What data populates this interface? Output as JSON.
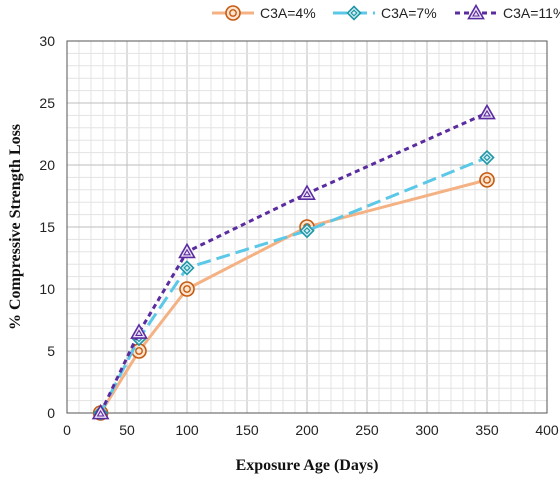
{
  "chart_data": {
    "type": "line",
    "title": "",
    "xlabel": "Exposure Age (Days)",
    "ylabel": "% Compressive Strength Loss",
    "xlim": [
      0,
      400
    ],
    "ylim": [
      0,
      30
    ],
    "x_ticks": [
      "0",
      "50",
      "100",
      "150",
      "200",
      "250",
      "300",
      "350",
      "400"
    ],
    "y_ticks": [
      "0",
      "5",
      "10",
      "15",
      "20",
      "25",
      "30"
    ],
    "grid": true,
    "legend_position": "top",
    "series": [
      {
        "name": "C3A=4%",
        "color": "#f4b183",
        "marker_color": "#c55a11",
        "marker": "circle",
        "dash": "solid",
        "x": [
          28,
          60,
          100,
          200,
          350
        ],
        "y": [
          0,
          5,
          10,
          15,
          18.8
        ]
      },
      {
        "name": "C3A=7%",
        "color": "#5bc8e8",
        "marker_color": "#2196a6",
        "marker": "diamond",
        "dash": "dash",
        "x": [
          28,
          60,
          100,
          200,
          350
        ],
        "y": [
          0,
          6,
          11.7,
          14.7,
          20.6
        ]
      },
      {
        "name": "C3A=11%",
        "color": "#5b2ca0",
        "marker_color": "#5b2ca0",
        "marker": "triangle",
        "dash": "dot",
        "x": [
          28,
          60,
          100,
          200,
          350
        ],
        "y": [
          0,
          6.5,
          13,
          17.7,
          24.2
        ]
      }
    ]
  }
}
